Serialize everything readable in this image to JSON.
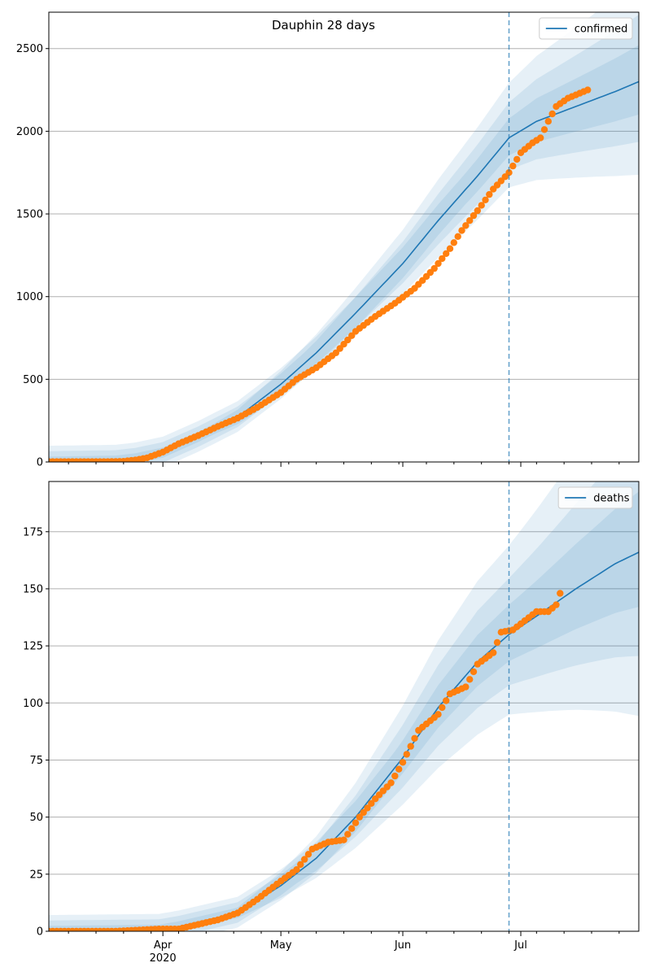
{
  "chart_data": [
    {
      "type": "line",
      "title": "Dauphin 28 days",
      "xlabel": "",
      "ylabel": "",
      "x_range": [
        "2020-03-03",
        "2020-07-31"
      ],
      "ylim": [
        0,
        2720
      ],
      "y_ticks": [
        0,
        500,
        1000,
        1500,
        2000,
        2500
      ],
      "x_ticks": [
        {
          "date": "2020-04-01",
          "label": "Apr",
          "sub": "2020"
        },
        {
          "date": "2020-05-01",
          "label": "May",
          "sub": ""
        },
        {
          "date": "2020-06-01",
          "label": "Jun",
          "sub": ""
        },
        {
          "date": "2020-07-01",
          "label": "Jul",
          "sub": ""
        }
      ],
      "forecast_start": "2020-06-28",
      "grid": "horizontal",
      "legend": "top-right",
      "colors": {
        "model": "#1f77b4",
        "observed": "#ff7f0e"
      },
      "model_curve": {
        "name": "confirmed",
        "points": [
          [
            "2020-03-03",
            0
          ],
          [
            "2020-03-20",
            6
          ],
          [
            "2020-03-25",
            20
          ],
          [
            "2020-04-01",
            55
          ],
          [
            "2020-04-10",
            150
          ],
          [
            "2020-04-20",
            270
          ],
          [
            "2020-05-01",
            470
          ],
          [
            "2020-05-10",
            660
          ],
          [
            "2020-05-20",
            900
          ],
          [
            "2020-06-01",
            1200
          ],
          [
            "2020-06-10",
            1460
          ],
          [
            "2020-06-20",
            1730
          ],
          [
            "2020-06-28",
            1960
          ],
          [
            "2020-07-05",
            2060
          ],
          [
            "2020-07-15",
            2150
          ],
          [
            "2020-07-25",
            2240
          ],
          [
            "2020-07-31",
            2300
          ]
        ]
      },
      "band_widths": [
        0.17,
        0.11,
        0.06
      ],
      "observed": [
        [
          "2020-03-03",
          2
        ],
        [
          "2020-03-08",
          2
        ],
        [
          "2020-03-13",
          2
        ],
        [
          "2020-03-18",
          2
        ],
        [
          "2020-03-22",
          4
        ],
        [
          "2020-03-25",
          12
        ],
        [
          "2020-03-28",
          25
        ],
        [
          "2020-04-01",
          60
        ],
        [
          "2020-04-05",
          110
        ],
        [
          "2020-04-10",
          160
        ],
        [
          "2020-04-15",
          215
        ],
        [
          "2020-04-20",
          265
        ],
        [
          "2020-04-25",
          330
        ],
        [
          "2020-05-01",
          420
        ],
        [
          "2020-05-05",
          500
        ],
        [
          "2020-05-10",
          570
        ],
        [
          "2020-05-15",
          660
        ],
        [
          "2020-05-20",
          790
        ],
        [
          "2020-05-25",
          880
        ],
        [
          "2020-05-30",
          960
        ],
        [
          "2020-06-04",
          1050
        ],
        [
          "2020-06-09",
          1170
        ],
        [
          "2020-06-13",
          1290
        ],
        [
          "2020-06-16",
          1400
        ],
        [
          "2020-06-20",
          1520
        ],
        [
          "2020-06-24",
          1650
        ],
        [
          "2020-06-28",
          1750
        ],
        [
          "2020-07-01",
          1870
        ],
        [
          "2020-07-04",
          1930
        ],
        [
          "2020-07-06",
          1960
        ],
        [
          "2020-07-08",
          2060
        ],
        [
          "2020-07-10",
          2150
        ],
        [
          "2020-07-13",
          2200
        ],
        [
          "2020-07-16",
          2230
        ],
        [
          "2020-07-18",
          2250
        ]
      ]
    },
    {
      "type": "line",
      "title": "",
      "xlabel": "",
      "ylabel": "",
      "x_range": [
        "2020-03-03",
        "2020-07-31"
      ],
      "ylim": [
        0,
        197
      ],
      "y_ticks": [
        0,
        25,
        50,
        75,
        100,
        125,
        150,
        175
      ],
      "x_ticks": [
        {
          "date": "2020-04-01",
          "label": "Apr",
          "sub": "2020"
        },
        {
          "date": "2020-05-01",
          "label": "May",
          "sub": ""
        },
        {
          "date": "2020-06-01",
          "label": "Jun",
          "sub": ""
        },
        {
          "date": "2020-07-01",
          "label": "Jul",
          "sub": ""
        }
      ],
      "forecast_start": "2020-06-28",
      "grid": "horizontal",
      "legend": "top-right",
      "colors": {
        "model": "#1f77b4",
        "observed": "#ff7f0e"
      },
      "model_curve": {
        "name": "deaths",
        "points": [
          [
            "2020-03-03",
            0
          ],
          [
            "2020-03-31",
            0.5
          ],
          [
            "2020-04-05",
            2
          ],
          [
            "2020-04-10",
            4
          ],
          [
            "2020-04-20",
            8
          ],
          [
            "2020-05-01",
            20
          ],
          [
            "2020-05-10",
            32
          ],
          [
            "2020-05-20",
            50
          ],
          [
            "2020-06-01",
            76
          ],
          [
            "2020-06-10",
            98
          ],
          [
            "2020-06-20",
            118
          ],
          [
            "2020-06-28",
            130
          ],
          [
            "2020-07-05",
            138
          ],
          [
            "2020-07-15",
            150
          ],
          [
            "2020-07-25",
            161
          ],
          [
            "2020-07-31",
            166
          ]
        ]
      },
      "band_widths": [
        0.3,
        0.19,
        0.1
      ],
      "observed": [
        [
          "2020-03-03",
          0
        ],
        [
          "2020-03-10",
          0
        ],
        [
          "2020-03-20",
          0
        ],
        [
          "2020-03-31",
          1
        ],
        [
          "2020-04-05",
          1
        ],
        [
          "2020-04-10",
          3
        ],
        [
          "2020-04-15",
          5
        ],
        [
          "2020-04-20",
          8
        ],
        [
          "2020-04-25",
          14
        ],
        [
          "2020-05-01",
          22
        ],
        [
          "2020-05-05",
          27
        ],
        [
          "2020-05-09",
          36
        ],
        [
          "2020-05-13",
          39
        ],
        [
          "2020-05-17",
          40
        ],
        [
          "2020-05-21",
          50
        ],
        [
          "2020-05-25",
          58
        ],
        [
          "2020-05-29",
          65
        ],
        [
          "2020-06-01",
          74
        ],
        [
          "2020-06-05",
          88
        ],
        [
          "2020-06-10",
          95
        ],
        [
          "2020-06-13",
          104
        ],
        [
          "2020-06-17",
          107
        ],
        [
          "2020-06-20",
          117
        ],
        [
          "2020-06-24",
          122
        ],
        [
          "2020-06-26",
          131
        ],
        [
          "2020-06-29",
          132
        ],
        [
          "2020-07-02",
          136
        ],
        [
          "2020-07-05",
          140
        ],
        [
          "2020-07-08",
          140
        ],
        [
          "2020-07-10",
          143
        ],
        [
          "2020-07-11",
          148
        ]
      ]
    }
  ]
}
